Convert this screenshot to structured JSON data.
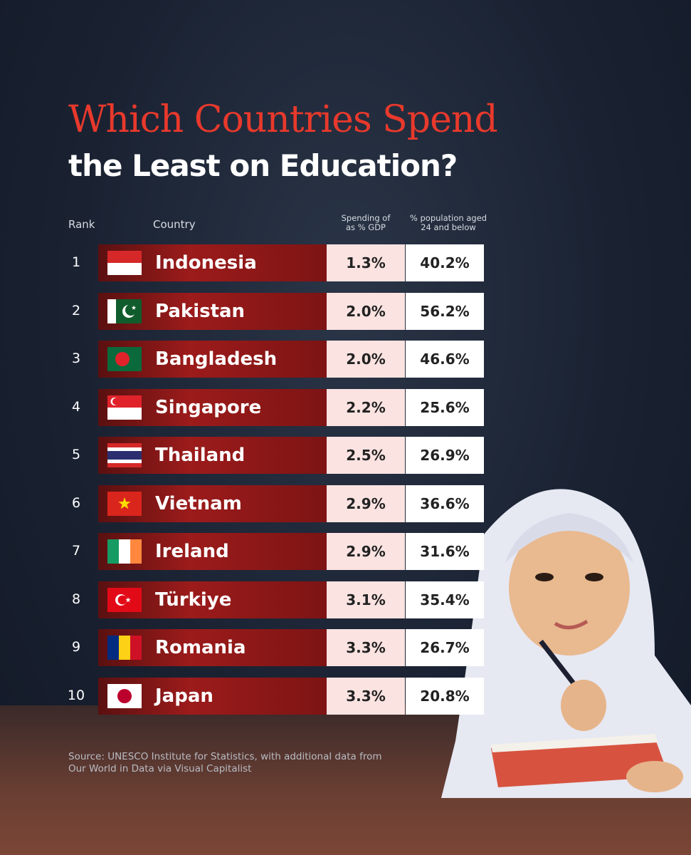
{
  "header": {
    "title_line1": "Which Countries Spend",
    "title_line2": "the Least on Education?"
  },
  "table": {
    "columns": [
      "Rank",
      "Country",
      [
        "Spending of",
        "as % GDP"
      ],
      [
        "% population aged",
        "24 and below"
      ]
    ],
    "rows": [
      [
        "1",
        "Indonesia",
        "1.3%",
        "40.2%"
      ],
      [
        "2",
        "Pakistan",
        "2.0%",
        "56.2%"
      ],
      [
        "3",
        "Bangladesh",
        "2.0%",
        "46.6%"
      ],
      [
        "4",
        "Singapore",
        "2.2%",
        "25.6%"
      ],
      [
        "5",
        "Thailand",
        "2.5%",
        "26.9%"
      ],
      [
        "6",
        "Vietnam",
        "2.9%",
        "36.6%"
      ],
      [
        "7",
        "Ireland",
        "2.9%",
        "31.6%"
      ],
      [
        "8",
        "Türkiye",
        "3.1%",
        "35.4%"
      ],
      [
        "9",
        "Romania",
        "3.3%",
        "26.7%"
      ],
      [
        "10",
        "Japan",
        "3.3%",
        "20.8%"
      ]
    ]
  },
  "footer": {
    "source_line1": "Source: UNESCO Institute for Statistics, with additional data from",
    "source_line2": "Our World in Data via Visual Capitalist"
  }
}
